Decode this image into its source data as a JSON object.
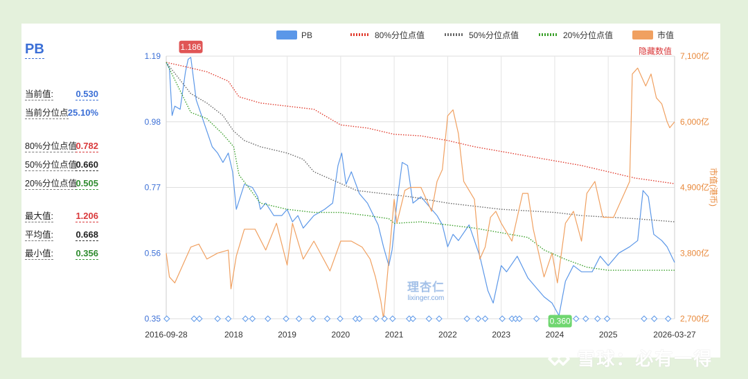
{
  "stats": {
    "title": "PB",
    "rows": [
      {
        "label": "当前值:",
        "value": "0.530",
        "color": "#3b6fd6"
      },
      {
        "label": "当前分位点",
        "value": "25.10%",
        "color": "#3b6fd6"
      },
      {
        "label": "80%分位点值",
        "value": "0.782",
        "color": "#d9383a"
      },
      {
        "label": "50%分位点值",
        "value": "0.660",
        "color": "#222222"
      },
      {
        "label": "20%分位点值",
        "value": "0.505",
        "color": "#2e8b2e"
      },
      {
        "label": "最大值:",
        "value": "1.206",
        "color": "#d9383a"
      },
      {
        "label": "平均值:",
        "value": "0.668",
        "color": "#222222"
      },
      {
        "label": "最小值:",
        "value": "0.356",
        "color": "#2e8b2e"
      }
    ]
  },
  "watermark": {
    "site": "理杏仁",
    "url": "lixinger.com",
    "brand_icon": "xueqiu-logo-icon",
    "brand": "雪球：必有一得"
  },
  "chart_data": {
    "type": "line",
    "legend": [
      {
        "name": "PB",
        "color": "#5b97e8",
        "style": "solid-box"
      },
      {
        "name": "80%分位点值",
        "color": "#e03a2c",
        "style": "dotted-box"
      },
      {
        "name": "50%分位点值",
        "color": "#666666",
        "style": "dotted-box"
      },
      {
        "name": "20%分位点值",
        "color": "#3aa02a",
        "style": "dotted-box"
      },
      {
        "name": "市值",
        "color": "#f0a060",
        "style": "solid-box"
      }
    ],
    "legend_position": "top",
    "x_ticks": [
      "2016-09-28",
      "2018",
      "2019",
      "2020",
      "2021",
      "2022",
      "2023",
      "2024",
      "2025",
      "2026-03-27"
    ],
    "x_tick_years": [
      2016.74,
      2018.0,
      2019.0,
      2020.0,
      2021.0,
      2022.0,
      2023.0,
      2024.0,
      2025.0,
      2026.24
    ],
    "x_range": [
      2016.74,
      2026.24
    ],
    "y_left": {
      "ticks": [
        "1.19",
        "0.98",
        "0.77",
        "0.56",
        "0.35"
      ],
      "range": [
        0.35,
        1.19
      ]
    },
    "y_right": {
      "ticks": [
        "7,100亿",
        "6,000亿",
        "4,900亿",
        "3,800亿",
        "2,700亿"
      ],
      "range": [
        2700,
        7100
      ],
      "label": "市值(港币)",
      "top_label": "隐藏数值"
    },
    "grid": true,
    "annotations": [
      {
        "text": "1.186",
        "x": 2017.2,
        "y": 1.186,
        "color": "#e05555"
      },
      {
        "text": "0.360",
        "x": 2024.1,
        "y": 0.36,
        "color": "#6fd66f"
      }
    ],
    "markers_x": [
      2016.75,
      2017.26,
      2017.36,
      2017.7,
      2017.9,
      2018.22,
      2018.35,
      2018.64,
      2018.98,
      2019.22,
      2019.48,
      2019.75,
      2019.99,
      2020.28,
      2020.35,
      2020.66,
      2020.82,
      2020.97,
      2021.28,
      2021.35,
      2021.65,
      2021.84,
      2022.36,
      2022.57,
      2022.7,
      2023.02,
      2023.2,
      2023.27,
      2023.34,
      2023.66,
      2023.94,
      2024.4,
      2024.58,
      2024.8,
      2024.98,
      2025.67,
      2025.86,
      2026.12
    ],
    "series": [
      {
        "name": "PB",
        "axis": "left",
        "x": [
          2016.74,
          2016.8,
          2016.85,
          2016.9,
          2017.0,
          2017.1,
          2017.15,
          2017.2,
          2017.3,
          2017.4,
          2017.5,
          2017.6,
          2017.7,
          2017.8,
          2017.9,
          2017.98,
          2018.05,
          2018.2,
          2018.35,
          2018.45,
          2018.5,
          2018.6,
          2018.75,
          2018.9,
          2019.0,
          2019.1,
          2019.2,
          2019.3,
          2019.5,
          2019.7,
          2019.85,
          2019.95,
          2020.02,
          2020.1,
          2020.2,
          2020.35,
          2020.5,
          2020.7,
          2020.8,
          2020.9,
          2020.96,
          2021.05,
          2021.15,
          2021.25,
          2021.35,
          2021.5,
          2021.7,
          2021.8,
          2021.9,
          2022.0,
          2022.1,
          2022.2,
          2022.4,
          2022.6,
          2022.75,
          2022.85,
          2023.0,
          2023.1,
          2023.3,
          2023.5,
          2023.65,
          2023.8,
          2023.95,
          2024.08,
          2024.2,
          2024.35,
          2024.5,
          2024.7,
          2024.85,
          2025.0,
          2025.2,
          2025.4,
          2025.55,
          2025.65,
          2025.75,
          2025.85,
          2026.0,
          2026.1,
          2026.24
        ],
        "values": [
          1.17,
          1.15,
          1.0,
          1.03,
          1.02,
          1.14,
          1.18,
          1.186,
          1.05,
          1.0,
          0.95,
          0.9,
          0.88,
          0.85,
          0.88,
          0.82,
          0.7,
          0.78,
          0.77,
          0.74,
          0.7,
          0.72,
          0.68,
          0.68,
          0.7,
          0.66,
          0.68,
          0.64,
          0.68,
          0.7,
          0.72,
          0.84,
          0.88,
          0.78,
          0.82,
          0.75,
          0.72,
          0.65,
          0.58,
          0.52,
          0.57,
          0.72,
          0.85,
          0.84,
          0.72,
          0.74,
          0.7,
          0.68,
          0.65,
          0.58,
          0.62,
          0.6,
          0.65,
          0.55,
          0.44,
          0.4,
          0.52,
          0.5,
          0.55,
          0.48,
          0.45,
          0.42,
          0.4,
          0.36,
          0.47,
          0.52,
          0.5,
          0.5,
          0.55,
          0.52,
          0.56,
          0.58,
          0.6,
          0.76,
          0.74,
          0.62,
          0.6,
          0.58,
          0.53
        ]
      },
      {
        "name": "80%分位点值",
        "axis": "left",
        "x": [
          2016.74,
          2017.0,
          2017.5,
          2017.9,
          2018.1,
          2018.5,
          2019.0,
          2019.5,
          2020.0,
          2020.5,
          2021.0,
          2021.5,
          2022.0,
          2022.5,
          2023.0,
          2023.5,
          2024.0,
          2024.5,
          2025.0,
          2025.5,
          2026.24
        ],
        "values": [
          1.17,
          1.16,
          1.14,
          1.11,
          1.06,
          1.04,
          1.03,
          1.02,
          0.97,
          0.96,
          0.94,
          0.935,
          0.92,
          0.9,
          0.885,
          0.87,
          0.855,
          0.84,
          0.82,
          0.8,
          0.782
        ]
      },
      {
        "name": "50%分位点值",
        "axis": "left",
        "x": [
          2016.74,
          2017.2,
          2017.5,
          2017.8,
          2018.0,
          2018.2,
          2018.5,
          2019.0,
          2019.3,
          2019.5,
          2019.9,
          2020.3,
          2020.8,
          2021.3,
          2022.0,
          2022.5,
          2023.0,
          2023.5,
          2024.0,
          2024.5,
          2025.0,
          2025.5,
          2026.24
        ],
        "values": [
          1.17,
          1.07,
          1.04,
          1.0,
          0.95,
          0.92,
          0.9,
          0.88,
          0.86,
          0.82,
          0.79,
          0.76,
          0.75,
          0.74,
          0.72,
          0.71,
          0.7,
          0.695,
          0.69,
          0.68,
          0.675,
          0.67,
          0.66
        ]
      },
      {
        "name": "20%分位点值",
        "axis": "left",
        "x": [
          2016.74,
          2017.2,
          2017.5,
          2017.8,
          2018.0,
          2018.1,
          2018.5,
          2019.0,
          2019.5,
          2020.0,
          2020.5,
          2020.9,
          2021.0,
          2021.5,
          2022.0,
          2022.5,
          2023.0,
          2023.5,
          2023.8,
          2024.2,
          2024.6,
          2025.0,
          2025.5,
          2026.24
        ],
        "values": [
          1.17,
          1.01,
          0.99,
          0.94,
          0.9,
          0.81,
          0.72,
          0.7,
          0.69,
          0.69,
          0.68,
          0.67,
          0.655,
          0.66,
          0.65,
          0.64,
          0.625,
          0.61,
          0.57,
          0.54,
          0.515,
          0.505,
          0.505,
          0.505
        ]
      },
      {
        "name": "市值",
        "axis": "right",
        "x": [
          2016.74,
          2016.8,
          2016.9,
          2017.0,
          2017.2,
          2017.35,
          2017.5,
          2017.7,
          2017.9,
          2017.95,
          2018.05,
          2018.2,
          2018.4,
          2018.6,
          2018.8,
          2019.0,
          2019.1,
          2019.3,
          2019.5,
          2019.8,
          2020.0,
          2020.2,
          2020.4,
          2020.55,
          2020.65,
          2020.75,
          2020.8,
          2020.85,
          2021.0,
          2021.05,
          2021.2,
          2021.3,
          2021.5,
          2021.7,
          2021.8,
          2021.9,
          2022.0,
          2022.1,
          2022.2,
          2022.3,
          2022.5,
          2022.6,
          2022.7,
          2022.8,
          2022.9,
          2023.0,
          2023.2,
          2023.4,
          2023.5,
          2023.6,
          2023.8,
          2023.95,
          2024.05,
          2024.2,
          2024.35,
          2024.5,
          2024.6,
          2024.75,
          2024.9,
          2025.1,
          2025.3,
          2025.4,
          2025.45,
          2025.55,
          2025.7,
          2025.8,
          2025.9,
          2026.0,
          2026.1,
          2026.15,
          2026.24
        ],
        "values": [
          3800,
          3400,
          3300,
          3500,
          3900,
          3950,
          3700,
          3800,
          3850,
          3200,
          3750,
          4200,
          4200,
          3850,
          4300,
          3600,
          4300,
          3700,
          4000,
          3500,
          4000,
          4000,
          3900,
          3700,
          3400,
          3000,
          2700,
          3200,
          4700,
          4300,
          4850,
          4900,
          4900,
          4500,
          5000,
          5200,
          6100,
          6200,
          5800,
          5000,
          4700,
          3700,
          3900,
          4400,
          4500,
          4300,
          4000,
          4800,
          4800,
          4200,
          3400,
          3800,
          3300,
          4300,
          4500,
          4000,
          4800,
          5000,
          4400,
          4400,
          4800,
          5000,
          6800,
          6900,
          6600,
          6800,
          6400,
          6300,
          6000,
          5900,
          6000
        ]
      }
    ]
  }
}
